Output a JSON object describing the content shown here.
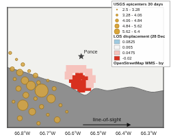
{
  "chart_data": {
    "type": "scatter",
    "xlim": [
      -66.86,
      -66.24
    ],
    "ylim": [
      17.86,
      18.1
    ],
    "xticks": [
      {
        "value": -66.8,
        "label": "66.8°W"
      },
      {
        "value": -66.7,
        "label": "66.7°W"
      },
      {
        "value": -66.6,
        "label": "66.6°W"
      },
      {
        "value": -66.5,
        "label": "66.5°W"
      },
      {
        "value": -66.4,
        "label": "66.4°W"
      },
      {
        "value": -66.3,
        "label": "66.3°W"
      }
    ],
    "tick_labels": "x",
    "grid": false,
    "series": [
      {
        "name": "USGS epicenters 30 days",
        "type": "bubble",
        "color": "#d9a53a",
        "x": [
          -66.848,
          -66.823,
          -66.798,
          -66.84,
          -66.81,
          -66.773,
          -66.748,
          -66.83,
          -66.79,
          -66.736,
          -66.699,
          -66.766,
          -66.815,
          -66.724,
          -66.674,
          -66.786,
          -66.748,
          -66.686,
          -66.835,
          -66.798,
          -66.724,
          -66.649,
          -66.761,
          -66.699,
          -66.81,
          -66.662,
          -66.736,
          -66.624
        ],
        "y": [
          18.009,
          17.996,
          17.986,
          17.977,
          17.97,
          17.973,
          17.964,
          17.957,
          17.954,
          17.95,
          17.954,
          17.944,
          17.938,
          17.934,
          17.938,
          17.925,
          17.918,
          17.918,
          17.912,
          17.905,
          17.902,
          17.905,
          17.892,
          17.886,
          17.879,
          17.876,
          17.869,
          17.892
        ],
        "magnitude": [
          3.0,
          2.8,
          3.2,
          3.5,
          4.2,
          3.0,
          3.6,
          3.1,
          4.5,
          3.3,
          2.9,
          5.0,
          3.8,
          6.4,
          3.4,
          4.0,
          3.2,
          4.8,
          3.0,
          5.5,
          3.5,
          3.1,
          4.3,
          3.0,
          3.7,
          4.0,
          3.2,
          2.9
        ]
      }
    ],
    "size_bins": [
      2.5,
      3.28,
      4.06,
      4.84,
      5.62,
      6.4
    ],
    "size_labels": [
      "2.5 - 3.28",
      "3.28 - 4.06",
      "4.06 - 4.84",
      "4.84 - 5.62",
      "5.62 - 6.4"
    ],
    "displacement": {
      "title": "LOS displacement (28 Dec",
      "classes": [
        0.0825,
        0.065,
        0.0475,
        -0.02
      ],
      "colors": [
        "#9ecae1",
        "#f7f7f7",
        "#f6c3bd",
        "#d7301f"
      ],
      "x": [
        -66.6,
        -66.582,
        -66.562,
        -66.575,
        -66.55,
        -66.592,
        -66.567,
        -66.543,
        -66.612,
        -66.587,
        -66.562,
        -66.538,
        -66.525,
        -66.617,
        -66.533
      ],
      "y": [
        17.957,
        17.951,
        17.947,
        17.964,
        17.957,
        17.944,
        17.938,
        17.941,
        17.977,
        17.977,
        17.977,
        17.97,
        17.957,
        17.964,
        17.947
      ],
      "values": [
        -0.02,
        -0.02,
        -0.02,
        -0.02,
        -0.02,
        -0.02,
        -0.02,
        -0.02,
        0.0475,
        0.0475,
        0.0475,
        0.0475,
        0.0475,
        0.0475,
        0.0475
      ]
    },
    "coastline": {
      "color": "#8f8f8f",
      "x": [
        -66.86,
        -66.786,
        -66.711,
        -66.637,
        -66.587,
        -66.55,
        -66.513,
        -66.463,
        -66.414,
        -66.364,
        -66.29,
        -66.24
      ],
      "y": [
        17.98,
        17.97,
        17.957,
        17.947,
        17.934,
        17.925,
        17.938,
        17.934,
        17.938,
        17.941,
        17.931,
        17.934
      ]
    },
    "annotations": [
      {
        "text": "Ponce",
        "marker": "star",
        "x": -66.567,
        "y": 18.002
      },
      {
        "text": "line-of-sight",
        "marker": "arrow",
        "x": [
          -66.56,
          -66.37
        ],
        "y": 17.866
      }
    ],
    "basemap": "OpenStreetMap WMS - by"
  }
}
